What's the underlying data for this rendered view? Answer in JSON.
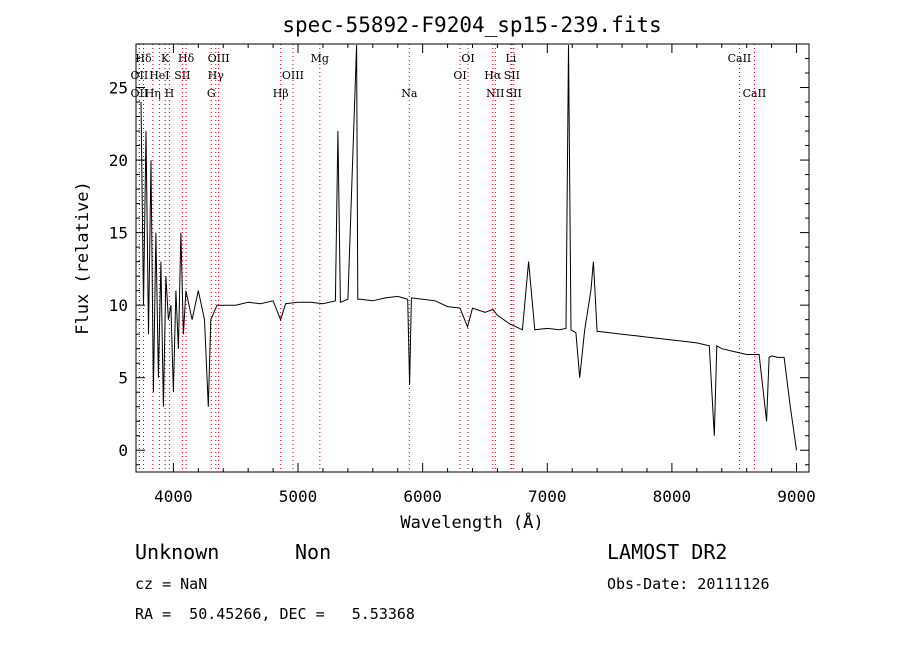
{
  "chart_data": {
    "type": "line",
    "title": "spec-55892-F9204_sp15-239.fits",
    "xlabel": "Wavelength (Å)",
    "ylabel": "Flux (relative)",
    "xlim": [
      3700,
      9100
    ],
    "ylim": [
      -1.5,
      28
    ],
    "x_ticks": [
      4000,
      5000,
      6000,
      7000,
      8000,
      9000
    ],
    "y_ticks": [
      0,
      5,
      10,
      15,
      20,
      25
    ],
    "line_color": "#000000",
    "marker_color": "#cc0000",
    "series": [
      {
        "x": [
          3740,
          3760,
          3780,
          3800,
          3820,
          3840,
          3860,
          3880,
          3900,
          3920,
          3940,
          3960,
          3980,
          4000,
          4020,
          4040,
          4060,
          4080,
          4100,
          4150,
          4200,
          4250,
          4280,
          4300,
          4350,
          4400,
          4450,
          4500,
          4600,
          4700,
          4800,
          4860,
          4900,
          5000,
          5100,
          5200,
          5300,
          5320,
          5340,
          5400,
          5470,
          5480,
          5500,
          5600,
          5700,
          5800,
          5880,
          5895,
          5910,
          6000,
          6100,
          6200,
          6300,
          6360,
          6400,
          6500,
          6563,
          6600,
          6700,
          6800,
          6850,
          6900,
          7000,
          7100,
          7150,
          7170,
          7190,
          7210,
          7230,
          7260,
          7300,
          7350,
          7370,
          7400,
          7500,
          7600,
          7700,
          7800,
          7900,
          8000,
          8100,
          8200,
          8300,
          8340,
          8360,
          8400,
          8500,
          8600,
          8700,
          8760,
          8780,
          8800,
          8850,
          8900,
          8950,
          9000
        ],
        "y": [
          24,
          10,
          22,
          8,
          20,
          4,
          15,
          5,
          13,
          3,
          12,
          9,
          10,
          4,
          11,
          7,
          15,
          8,
          11,
          9,
          11,
          9,
          3,
          9,
          10,
          10,
          10,
          10,
          10.2,
          10.1,
          10.3,
          9,
          10.1,
          10.2,
          10.2,
          10.1,
          10.3,
          22,
          10.2,
          10.4,
          28,
          10.4,
          10.4,
          10.3,
          10.5,
          10.6,
          10.4,
          4.5,
          10.5,
          10.4,
          10.3,
          9.9,
          9.8,
          8.5,
          9.8,
          9.5,
          9.7,
          9.3,
          8.7,
          8.3,
          13,
          8.3,
          8.4,
          8.3,
          8.4,
          28,
          8.3,
          8.2,
          8.1,
          5,
          8.3,
          11,
          13,
          8.2,
          8.1,
          8.0,
          7.9,
          7.8,
          7.7,
          7.6,
          7.5,
          7.4,
          7.2,
          1,
          7.2,
          7.0,
          6.8,
          6.6,
          6.6,
          2,
          6.4,
          6.5,
          6.4,
          6.4,
          3,
          0
        ]
      }
    ],
    "line_markers": [
      {
        "label": "Hδ",
        "x": 3760,
        "row": 1
      },
      {
        "label": "K",
        "x": 3934,
        "row": 1
      },
      {
        "label": "Hδ",
        "x": 4102,
        "row": 1
      },
      {
        "label": "OIII",
        "x": 4363,
        "row": 1
      },
      {
        "label": "Mg",
        "x": 5175,
        "row": 1
      },
      {
        "label": "OI",
        "x": 6364,
        "row": 1
      },
      {
        "label": "Li",
        "x": 6708,
        "row": 1
      },
      {
        "label": "CaII",
        "x": 8542,
        "row": 1
      },
      {
        "label": "OII",
        "x": 3727,
        "row": 2
      },
      {
        "label": "HeI",
        "x": 3888,
        "row": 2
      },
      {
        "label": "SII",
        "x": 4072,
        "row": 2
      },
      {
        "label": "Hγ",
        "x": 4340,
        "row": 2
      },
      {
        "label": "OIII",
        "x": 4959,
        "row": 2
      },
      {
        "label": "OI",
        "x": 6300,
        "row": 2
      },
      {
        "label": "Hα",
        "x": 6563,
        "row": 2
      },
      {
        "label": "SII",
        "x": 6716,
        "row": 2
      },
      {
        "label": "OII",
        "x": 3727,
        "row": 3
      },
      {
        "label": "Hη",
        "x": 3835,
        "row": 3
      },
      {
        "label": "H",
        "x": 3968,
        "row": 3
      },
      {
        "label": "G",
        "x": 4304,
        "row": 3
      },
      {
        "label": "Hβ",
        "x": 4861,
        "row": 3
      },
      {
        "label": "Na",
        "x": 5893,
        "row": 3
      },
      {
        "label": "NII",
        "x": 6583,
        "row": 3
      },
      {
        "label": "SII",
        "x": 6731,
        "row": 3
      },
      {
        "label": "CaII",
        "x": 8662,
        "row": 3
      }
    ]
  },
  "info": {
    "object_class": "Unknown",
    "subclass": "Non",
    "survey": "LAMOST DR2",
    "cz": "cz = NaN",
    "obs_date": "Obs-Date: 20111126",
    "radec": "RA =  50.45266, DEC =   5.53368"
  }
}
